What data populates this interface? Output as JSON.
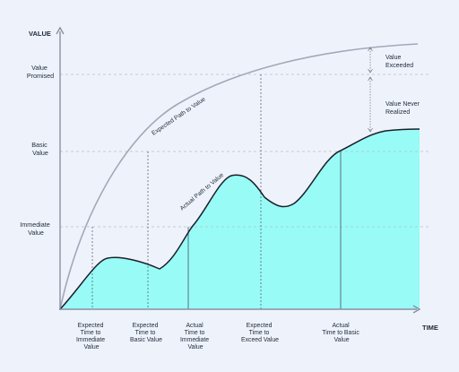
{
  "axes": {
    "y_title": "VALUE",
    "x_title": "TIME"
  },
  "y_labels": [
    {
      "lines": [
        "Value",
        "Promised"
      ]
    },
    {
      "lines": [
        "Basic",
        "Value"
      ]
    },
    {
      "lines": [
        "Immediate",
        "Value"
      ]
    }
  ],
  "x_labels": [
    {
      "lines": [
        "Expected",
        "Time to",
        "Immediate",
        "Value"
      ]
    },
    {
      "lines": [
        "Expected",
        "Time to",
        "Basic Value"
      ]
    },
    {
      "lines": [
        "Actual",
        "Time to",
        "Immediate",
        "Value"
      ]
    },
    {
      "lines": [
        "Expected",
        "Time to",
        "Exceed Value"
      ]
    },
    {
      "lines": [
        "Actual",
        "Time to Basic",
        "Value"
      ]
    }
  ],
  "curves": {
    "expected_label": "Expected Path to Value",
    "actual_label": "Actual Path to Value"
  },
  "annotations": {
    "exceeded": [
      "Value",
      "Exceeded"
    ],
    "never_realized": [
      "Value Never",
      "Realized"
    ]
  },
  "colors": {
    "background": "#eef3fb",
    "axis": "#8a8fa0",
    "fill": "#98fbf6",
    "actual_stroke": "#1b1f2b",
    "expected_stroke": "#a6a6b8",
    "guide": "#b8bdc8"
  }
}
